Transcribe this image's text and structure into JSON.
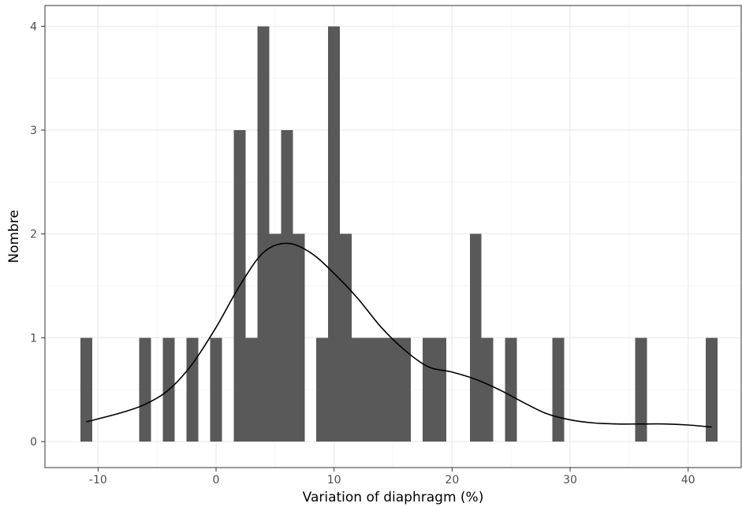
{
  "chart_data": {
    "type": "bar",
    "xlabel": "Variation of diaphragm (%)",
    "ylabel": "Nombre",
    "xlim": [
      -14.5,
      44.5
    ],
    "ylim": [
      -0.25,
      4.2
    ],
    "x_ticks": [
      "-10",
      "0",
      "10",
      "20",
      "30",
      "40"
    ],
    "y_ticks": [
      "0",
      "1",
      "2",
      "3",
      "4"
    ],
    "grid": true,
    "bin_width": 1,
    "bins": [
      {
        "x": -11,
        "count": 1
      },
      {
        "x": -6,
        "count": 1
      },
      {
        "x": -4,
        "count": 1
      },
      {
        "x": -2,
        "count": 1
      },
      {
        "x": 0,
        "count": 1
      },
      {
        "x": 2,
        "count": 3
      },
      {
        "x": 3,
        "count": 1
      },
      {
        "x": 4,
        "count": 4
      },
      {
        "x": 5,
        "count": 2
      },
      {
        "x": 6,
        "count": 3
      },
      {
        "x": 7,
        "count": 2
      },
      {
        "x": 9,
        "count": 1
      },
      {
        "x": 10,
        "count": 4
      },
      {
        "x": 11,
        "count": 2
      },
      {
        "x": 12,
        "count": 1
      },
      {
        "x": 13,
        "count": 1
      },
      {
        "x": 14,
        "count": 1
      },
      {
        "x": 15,
        "count": 1
      },
      {
        "x": 16,
        "count": 1
      },
      {
        "x": 18,
        "count": 1
      },
      {
        "x": 19,
        "count": 1
      },
      {
        "x": 22,
        "count": 2
      },
      {
        "x": 23,
        "count": 1
      },
      {
        "x": 25,
        "count": 1
      },
      {
        "x": 29,
        "count": 1
      },
      {
        "x": 36,
        "count": 1
      },
      {
        "x": 42,
        "count": 1
      }
    ],
    "density_curve": [
      {
        "x": -11,
        "y": 0.19
      },
      {
        "x": -8,
        "y": 0.28
      },
      {
        "x": -6,
        "y": 0.36
      },
      {
        "x": -4,
        "y": 0.5
      },
      {
        "x": -2,
        "y": 0.75
      },
      {
        "x": 0,
        "y": 1.1
      },
      {
        "x": 2,
        "y": 1.5
      },
      {
        "x": 4,
        "y": 1.82
      },
      {
        "x": 6,
        "y": 1.91
      },
      {
        "x": 8,
        "y": 1.82
      },
      {
        "x": 10,
        "y": 1.62
      },
      {
        "x": 12,
        "y": 1.38
      },
      {
        "x": 14,
        "y": 1.1
      },
      {
        "x": 16,
        "y": 0.88
      },
      {
        "x": 18,
        "y": 0.72
      },
      {
        "x": 20,
        "y": 0.67
      },
      {
        "x": 22,
        "y": 0.6
      },
      {
        "x": 24,
        "y": 0.5
      },
      {
        "x": 26,
        "y": 0.38
      },
      {
        "x": 28,
        "y": 0.27
      },
      {
        "x": 30,
        "y": 0.21
      },
      {
        "x": 32,
        "y": 0.18
      },
      {
        "x": 34,
        "y": 0.17
      },
      {
        "x": 36,
        "y": 0.17
      },
      {
        "x": 38,
        "y": 0.17
      },
      {
        "x": 40,
        "y": 0.16
      },
      {
        "x": 42,
        "y": 0.14
      }
    ],
    "colors": {
      "bar": "#595959",
      "curve": "#000000",
      "grid_major": "#ebebeb",
      "grid_minor": "#f5f5f5",
      "panel_border": "#333333"
    }
  }
}
